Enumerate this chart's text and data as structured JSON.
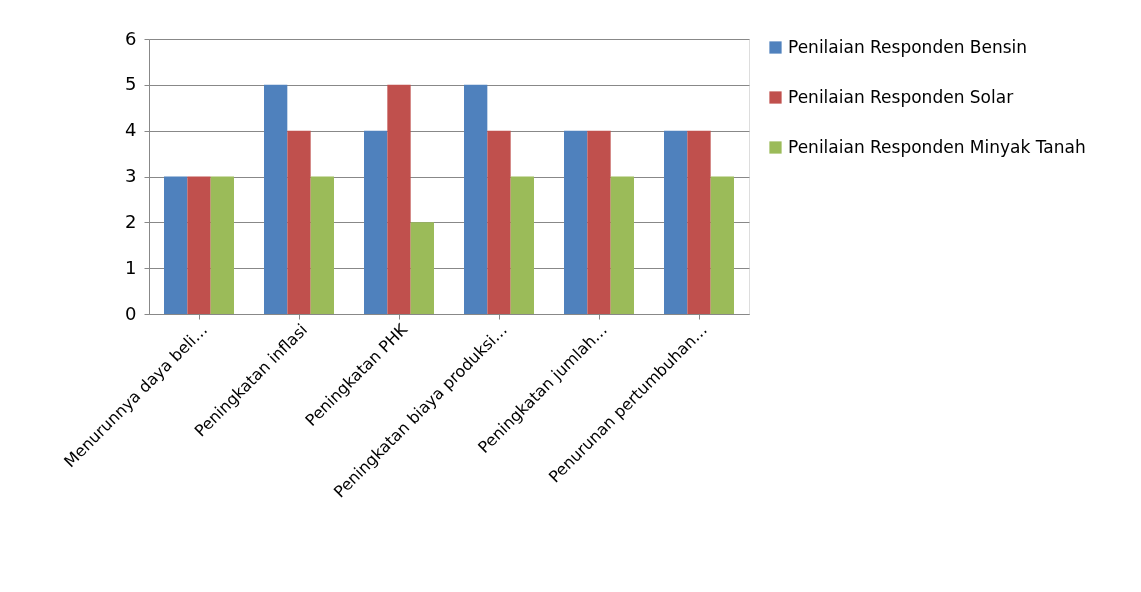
{
  "chart_data": {
    "type": "bar",
    "categories": [
      "Menurunnya daya beli…",
      "Peningkatan inflasi",
      "Peningkatan PHK",
      "Peningkatan biaya produksi…",
      "Peningkatan jumlah…",
      "Penurunan pertumbuhan…"
    ],
    "series": [
      {
        "name": "Penilaian Responden Bensin",
        "color": "#4f81bd",
        "values": [
          3,
          5,
          4,
          5,
          4,
          4
        ]
      },
      {
        "name": "Penilaian Responden Solar",
        "color": "#c0504d",
        "values": [
          3,
          4,
          5,
          4,
          4,
          4
        ]
      },
      {
        "name": "Penilaian Responden Minyak Tanah",
        "color": "#9bbb59",
        "values": [
          3,
          3,
          2,
          3,
          3,
          3
        ]
      }
    ],
    "ylim": [
      0,
      6
    ],
    "yticks": [
      0,
      1,
      2,
      3,
      4,
      5,
      6
    ],
    "grid": "y",
    "legend": "right"
  }
}
